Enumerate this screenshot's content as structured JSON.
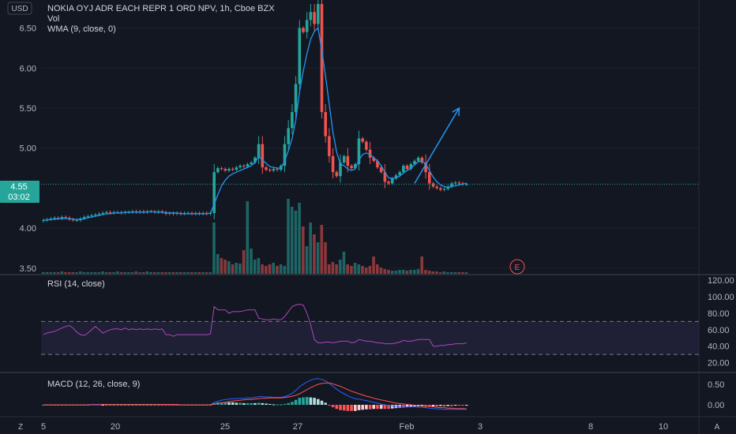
{
  "header": {
    "title": "NOKIA OYJ ADR EACH REPR 1 ORD NPV, 1h, Cboe BZX",
    "vol_label": "Vol",
    "wma_label": "WMA (9, close, 0)",
    "currency": "USD"
  },
  "price_badge": {
    "price": "4.55",
    "countdown": "03:02"
  },
  "earnings_marker": "E",
  "colors": {
    "background": "#131722",
    "up": "#26a69a",
    "down": "#ef5350",
    "wma": "#2196f3",
    "rsi": "#9c27b0",
    "macd": "#2962ff",
    "signal": "#ff5252",
    "arrow": "#2196f3"
  },
  "axis": {
    "price_ticks": [
      "6.50",
      "6.00",
      "5.50",
      "5.00",
      "4.55",
      "4.00",
      "3.50"
    ],
    "rsi_ticks": [
      "120.00",
      "100.00",
      "80.00",
      "60.00",
      "40.00",
      "20.00"
    ],
    "macd_ticks": [
      "0.50",
      "0.00"
    ],
    "time_ticks": [
      "5",
      "20",
      "25",
      "27",
      "Feb",
      "3",
      "8",
      "10"
    ]
  },
  "bottom_bar": {
    "left_icon": "Z",
    "right_icon": "A"
  },
  "chart_data": [
    {
      "type": "candlestick",
      "title": "NOKIA OYJ ADR EACH REPR 1 ORD NPV, 1h, Cboe BZX",
      "ylim": [
        3.45,
        6.85
      ],
      "x_count": 115,
      "series": [
        {
          "name": "Price",
          "values": [
            4.1,
            4.11,
            4.12,
            4.13,
            4.12,
            4.14,
            4.13,
            4.11,
            4.1,
            4.1,
            4.12,
            4.14,
            4.15,
            4.16,
            4.17,
            4.18,
            4.19,
            4.2,
            4.19,
            4.2,
            4.2,
            4.19,
            4.2,
            4.2,
            4.21,
            4.2,
            4.21,
            4.2,
            4.21,
            4.21,
            4.2,
            4.21,
            4.2,
            4.18,
            4.19,
            4.18,
            4.19,
            4.18,
            4.19,
            4.19,
            4.18,
            4.19,
            4.18,
            4.19,
            4.18,
            4.19,
            4.7,
            4.75,
            4.74,
            4.72,
            4.74,
            4.73,
            4.76,
            4.78,
            4.77,
            4.8,
            4.82,
            4.88,
            5.05,
            4.76,
            4.73,
            4.72,
            4.74,
            4.73,
            4.78,
            5.05,
            5.25,
            5.45,
            5.8,
            6.5,
            6.45,
            6.6,
            6.7,
            6.55,
            6.8,
            5.45,
            5.15,
            4.9,
            4.7,
            4.65,
            4.82,
            4.9,
            4.78,
            4.75,
            4.8,
            5.12,
            5.08,
            4.98,
            4.88,
            4.84,
            4.76,
            4.7,
            4.58,
            4.56,
            4.62,
            4.66,
            4.7,
            4.78,
            4.74,
            4.8,
            4.84,
            4.88,
            4.82,
            4.7,
            4.56,
            4.52,
            4.5,
            4.48,
            4.49,
            4.52,
            4.56,
            4.57,
            4.56,
            4.55,
            4.55
          ]
        },
        {
          "name": "WMA (9, close, 0)",
          "values": [
            4.1,
            4.1,
            4.11,
            4.11,
            4.12,
            4.12,
            4.12,
            4.12,
            4.11,
            4.11,
            4.11,
            4.12,
            4.13,
            4.14,
            4.15,
            4.16,
            4.17,
            4.18,
            4.18,
            4.19,
            4.19,
            4.19,
            4.2,
            4.2,
            4.2,
            4.2,
            4.2,
            4.2,
            4.2,
            4.21,
            4.2,
            4.2,
            4.2,
            4.19,
            4.19,
            4.19,
            4.19,
            4.18,
            4.18,
            4.18,
            4.18,
            4.18,
            4.18,
            4.18,
            4.18,
            4.19,
            4.3,
            4.42,
            4.53,
            4.6,
            4.65,
            4.68,
            4.7,
            4.72,
            4.74,
            4.76,
            4.78,
            4.82,
            4.9,
            4.85,
            4.81,
            4.77,
            4.76,
            4.75,
            4.75,
            4.84,
            4.97,
            5.12,
            5.35,
            5.7,
            5.96,
            6.18,
            6.36,
            6.46,
            6.5,
            6.22,
            5.9,
            5.55,
            5.2,
            4.95,
            4.8,
            4.78,
            4.74,
            4.72,
            4.74,
            4.85,
            4.92,
            4.94,
            4.92,
            4.88,
            4.84,
            4.78,
            4.7,
            4.63,
            4.62,
            4.63,
            4.65,
            4.69,
            4.72,
            4.75,
            4.79,
            4.83,
            4.84,
            4.8,
            4.72,
            4.64,
            4.58,
            4.54,
            4.52,
            4.51,
            4.52,
            4.53,
            4.54,
            4.55,
            4.56
          ]
        }
      ],
      "projection": [
        {
          "x": 100,
          "y": 4.56
        },
        {
          "x": 112,
          "y": 5.5
        }
      ],
      "horizontal_line": 4.55
    },
    {
      "type": "bar",
      "title": "Vol",
      "ylim": [
        0,
        1
      ],
      "values": [
        0.02,
        0.02,
        0.02,
        0.02,
        0.02,
        0.03,
        0.02,
        0.02,
        0.02,
        0.02,
        0.03,
        0.02,
        0.02,
        0.02,
        0.02,
        0.02,
        0.03,
        0.02,
        0.02,
        0.02,
        0.03,
        0.02,
        0.02,
        0.02,
        0.02,
        0.03,
        0.02,
        0.02,
        0.03,
        0.02,
        0.02,
        0.02,
        0.02,
        0.02,
        0.02,
        0.02,
        0.02,
        0.02,
        0.02,
        0.02,
        0.02,
        0.02,
        0.02,
        0.02,
        0.02,
        0.02,
        0.65,
        0.25,
        0.2,
        0.18,
        0.16,
        0.12,
        0.14,
        0.13,
        0.3,
        0.92,
        0.32,
        0.18,
        0.2,
        0.12,
        0.1,
        0.12,
        0.14,
        0.1,
        0.12,
        0.1,
        0.95,
        0.85,
        0.8,
        0.9,
        0.6,
        0.35,
        0.65,
        0.5,
        0.4,
        0.62,
        0.4,
        0.12,
        0.15,
        0.12,
        0.18,
        0.28,
        0.12,
        0.1,
        0.14,
        0.12,
        0.1,
        0.08,
        0.1,
        0.22,
        0.12,
        0.08,
        0.06,
        0.05,
        0.04,
        0.04,
        0.05,
        0.05,
        0.04,
        0.05,
        0.05,
        0.06,
        0.22,
        0.05,
        0.04,
        0.03,
        0.03,
        0.02,
        0.03,
        0.02,
        0.02,
        0.02,
        0.02,
        0.02,
        0.02
      ]
    },
    {
      "type": "line",
      "title": "RSI (14, close)",
      "ylim": [
        10,
        125
      ],
      "bands": [
        70,
        30
      ],
      "values": [
        54,
        56,
        57,
        58,
        60,
        62,
        64,
        65,
        62,
        57,
        54,
        53,
        56,
        60,
        64,
        60,
        56,
        58,
        60,
        61,
        61,
        60,
        62,
        60,
        61,
        60,
        61,
        60,
        61,
        60,
        61,
        60,
        61,
        54,
        54,
        52,
        54,
        54,
        54,
        54,
        54,
        54,
        54,
        54,
        54,
        55,
        88,
        84,
        84,
        84,
        80,
        82,
        82,
        82,
        83,
        84,
        84,
        84,
        74,
        73,
        72,
        72,
        73,
        72,
        72,
        76,
        82,
        88,
        90,
        91,
        90,
        80,
        66,
        48,
        44,
        44,
        45,
        45,
        44,
        45,
        46,
        46,
        46,
        44,
        45,
        48,
        47,
        46,
        46,
        45,
        44,
        44,
        43,
        43,
        43,
        44,
        45,
        47,
        46,
        46,
        47,
        48,
        48,
        48,
        48,
        40,
        40,
        41,
        41,
        42,
        42,
        43,
        43,
        43,
        44
      ]
    },
    {
      "type": "bar",
      "title": "MACD (12, 26, close, 9)",
      "ylim": [
        -0.25,
        0.75
      ],
      "series": [
        {
          "name": "MACD",
          "values": [
            0.0,
            0.0,
            0.0,
            0.0,
            0.0,
            0.0,
            0.0,
            0.0,
            0.0,
            0.0,
            0.0,
            0.0,
            0.0,
            0.01,
            0.01,
            0.01,
            0.01,
            0.01,
            0.01,
            0.01,
            0.01,
            0.01,
            0.01,
            0.01,
            0.01,
            0.01,
            0.01,
            0.01,
            0.01,
            0.01,
            0.01,
            0.01,
            0.0,
            0.0,
            0.0,
            0.0,
            0.0,
            0.0,
            0.0,
            0.0,
            0.0,
            0.0,
            0.0,
            0.0,
            0.0,
            0.0,
            0.06,
            0.09,
            0.11,
            0.13,
            0.14,
            0.15,
            0.15,
            0.16,
            0.16,
            0.17,
            0.17,
            0.18,
            0.2,
            0.2,
            0.19,
            0.19,
            0.18,
            0.18,
            0.18,
            0.2,
            0.23,
            0.28,
            0.35,
            0.44,
            0.5,
            0.56,
            0.6,
            0.63,
            0.64,
            0.62,
            0.58,
            0.52,
            0.45,
            0.38,
            0.32,
            0.27,
            0.22,
            0.18,
            0.15,
            0.14,
            0.12,
            0.1,
            0.08,
            0.06,
            0.04,
            0.02,
            0.0,
            -0.02,
            -0.03,
            -0.04,
            -0.04,
            -0.05,
            -0.05,
            -0.05,
            -0.05,
            -0.06,
            -0.06,
            -0.07,
            -0.08,
            -0.09,
            -0.1,
            -0.1,
            -0.11,
            -0.11,
            -0.11,
            -0.11,
            -0.11,
            -0.11,
            -0.11
          ]
        },
        {
          "name": "Signal",
          "values": [
            0.0,
            0.0,
            0.0,
            0.0,
            0.0,
            0.0,
            0.0,
            0.0,
            0.0,
            0.0,
            0.0,
            0.0,
            0.0,
            0.0,
            0.0,
            0.0,
            0.01,
            0.01,
            0.01,
            0.01,
            0.01,
            0.01,
            0.01,
            0.01,
            0.01,
            0.01,
            0.01,
            0.01,
            0.01,
            0.01,
            0.01,
            0.01,
            0.01,
            0.01,
            0.01,
            0.01,
            0.01,
            0.0,
            0.0,
            0.0,
            0.0,
            0.0,
            0.0,
            0.0,
            0.0,
            0.0,
            0.02,
            0.03,
            0.05,
            0.06,
            0.08,
            0.09,
            0.1,
            0.11,
            0.12,
            0.13,
            0.13,
            0.14,
            0.15,
            0.16,
            0.16,
            0.17,
            0.17,
            0.17,
            0.17,
            0.18,
            0.19,
            0.21,
            0.23,
            0.27,
            0.32,
            0.37,
            0.42,
            0.46,
            0.5,
            0.52,
            0.53,
            0.53,
            0.51,
            0.48,
            0.45,
            0.41,
            0.37,
            0.33,
            0.3,
            0.27,
            0.24,
            0.21,
            0.19,
            0.16,
            0.14,
            0.12,
            0.1,
            0.08,
            0.06,
            0.04,
            0.03,
            0.02,
            0.01,
            0.0,
            -0.01,
            -0.02,
            -0.03,
            -0.04,
            -0.04,
            -0.05,
            -0.06,
            -0.07,
            -0.07,
            -0.08,
            -0.08,
            -0.09,
            -0.09,
            -0.09,
            -0.1
          ]
        }
      ]
    }
  ]
}
